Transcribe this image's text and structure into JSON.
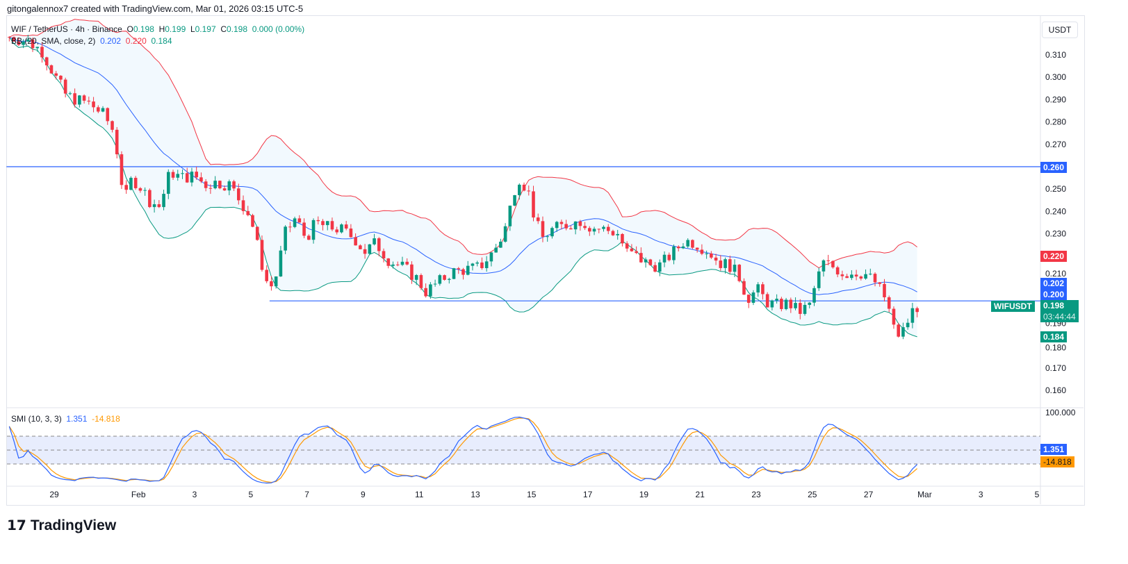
{
  "credit": "gitongalennox7 created with TradingView.com, Mar 01, 2026 03:15 UTC-5",
  "legend": {
    "symbol": "WIF / TetherUS · 4h · Binance",
    "o_label": "O",
    "o": "0.198",
    "h_label": "H",
    "h": "0.199",
    "l_label": "L",
    "l": "0.197",
    "c_label": "C",
    "c": "0.198",
    "change": "0.000 (0.00%)",
    "bb_label": "BB (20, SMA, close, 2)",
    "bb_basis": "0.202",
    "bb_upper": "0.220",
    "bb_lower": "0.184"
  },
  "smi_legend": {
    "label": "SMI (10, 3, 3)",
    "smi": "1.351",
    "signal": "-14.818"
  },
  "unit": "USDT",
  "price_labels": {
    "resistance": "0.260",
    "upper": "0.220",
    "basis": "0.202",
    "support": "0.200",
    "symbol": "WIFUSDT",
    "last": "0.198",
    "countdown": "03:44:44",
    "lower": "0.184",
    "smi": "1.351",
    "signal": "-14.818"
  },
  "logo": "TradingView",
  "colors": {
    "up": "#089981",
    "down": "#f23645",
    "basis": "#2962ff",
    "upper": "#f23645",
    "lower": "#089981",
    "smi": "#2962ff",
    "signal": "#ff9800"
  },
  "chart_data": {
    "type": "candlestick",
    "title": "WIF / TetherUS · 4h · Binance",
    "y_ticks": [
      "0.310",
      "0.300",
      "0.290",
      "0.280",
      "0.270",
      "0.250",
      "0.240",
      "0.230",
      "0.210",
      "0.190",
      "0.180",
      "0.170",
      "0.160"
    ],
    "y_tick_values": [
      0.31,
      0.3,
      0.29,
      0.28,
      0.27,
      0.25,
      0.24,
      0.23,
      0.21,
      0.19,
      0.18,
      0.17,
      0.16
    ],
    "x_ticks": [
      "29",
      "Feb",
      "3",
      "5",
      "7",
      "9",
      "11",
      "13",
      "15",
      "17",
      "19",
      "21",
      "23",
      "25",
      "27",
      "Mar",
      "3",
      "5"
    ],
    "x_tick_days": [
      0,
      3,
      5,
      7,
      9,
      11,
      13,
      15,
      17,
      19,
      21,
      23,
      25,
      27,
      29,
      31,
      33,
      35
    ],
    "x_unit": "days since Jan 29",
    "horizontal_lines": [
      {
        "price": 0.26,
        "from_day": -1.7
      },
      {
        "price": 0.2,
        "from_day": 7.67
      }
    ],
    "close_path": [
      [
        -1.6,
        0.318
      ],
      [
        -0.94,
        0.316
      ],
      [
        -0.45,
        0.312
      ],
      [
        0.05,
        0.3
      ],
      [
        0.42,
        0.292
      ],
      [
        0.79,
        0.29
      ],
      [
        1.29,
        0.288
      ],
      [
        1.78,
        0.283
      ],
      [
        2.15,
        0.275
      ],
      [
        2.33,
        0.258
      ],
      [
        2.52,
        0.245
      ],
      [
        2.77,
        0.255
      ],
      [
        3.14,
        0.25
      ],
      [
        3.39,
        0.245
      ],
      [
        3.76,
        0.242
      ],
      [
        4.13,
        0.258
      ],
      [
        4.5,
        0.255
      ],
      [
        5.0,
        0.256
      ],
      [
        5.37,
        0.252
      ],
      [
        5.74,
        0.253
      ],
      [
        6.24,
        0.252
      ],
      [
        6.61,
        0.245
      ],
      [
        6.98,
        0.238
      ],
      [
        7.23,
        0.225
      ],
      [
        7.48,
        0.212
      ],
      [
        7.67,
        0.205
      ],
      [
        7.92,
        0.212
      ],
      [
        8.22,
        0.23
      ],
      [
        8.59,
        0.237
      ],
      [
        8.96,
        0.228
      ],
      [
        9.33,
        0.235
      ],
      [
        9.7,
        0.233
      ],
      [
        10.2,
        0.232
      ],
      [
        10.69,
        0.228
      ],
      [
        11.06,
        0.222
      ],
      [
        11.44,
        0.226
      ],
      [
        11.93,
        0.218
      ],
      [
        12.43,
        0.215
      ],
      [
        12.92,
        0.21
      ],
      [
        13.22,
        0.204
      ],
      [
        13.66,
        0.208
      ],
      [
        14.16,
        0.213
      ],
      [
        14.65,
        0.214
      ],
      [
        15.15,
        0.215
      ],
      [
        15.64,
        0.222
      ],
      [
        16.01,
        0.23
      ],
      [
        16.26,
        0.243
      ],
      [
        16.51,
        0.256
      ],
      [
        16.88,
        0.249
      ],
      [
        17.13,
        0.236
      ],
      [
        17.38,
        0.228
      ],
      [
        17.75,
        0.232
      ],
      [
        18.24,
        0.234
      ],
      [
        18.74,
        0.236
      ],
      [
        19.11,
        0.233
      ],
      [
        19.6,
        0.232
      ],
      [
        20.1,
        0.23
      ],
      [
        20.35,
        0.222
      ],
      [
        20.72,
        0.22
      ],
      [
        21.21,
        0.216
      ],
      [
        21.58,
        0.216
      ],
      [
        22.08,
        0.222
      ],
      [
        22.45,
        0.227
      ],
      [
        22.82,
        0.226
      ],
      [
        23.32,
        0.222
      ],
      [
        23.69,
        0.217
      ],
      [
        24.06,
        0.216
      ],
      [
        24.43,
        0.21
      ],
      [
        24.68,
        0.201
      ],
      [
        25.05,
        0.205
      ],
      [
        25.42,
        0.199
      ],
      [
        25.79,
        0.198
      ],
      [
        26.16,
        0.199
      ],
      [
        26.53,
        0.195
      ],
      [
        26.9,
        0.198
      ],
      [
        27.15,
        0.209
      ],
      [
        27.4,
        0.217
      ],
      [
        27.77,
        0.215
      ],
      [
        28.14,
        0.212
      ],
      [
        28.51,
        0.213
      ],
      [
        28.89,
        0.212
      ],
      [
        29.26,
        0.208
      ],
      [
        29.65,
        0.2
      ],
      [
        29.88,
        0.188
      ],
      [
        30.12,
        0.184
      ],
      [
        30.37,
        0.19
      ],
      [
        30.62,
        0.197
      ],
      [
        30.87,
        0.198
      ]
    ],
    "indicators": {
      "bb": {
        "length": 20,
        "mult": 2
      },
      "smi": {
        "params": [
          10,
          3,
          3
        ],
        "levels": [
          40,
          0,
          -40
        ],
        "axis_top": "100.000"
      }
    }
  }
}
